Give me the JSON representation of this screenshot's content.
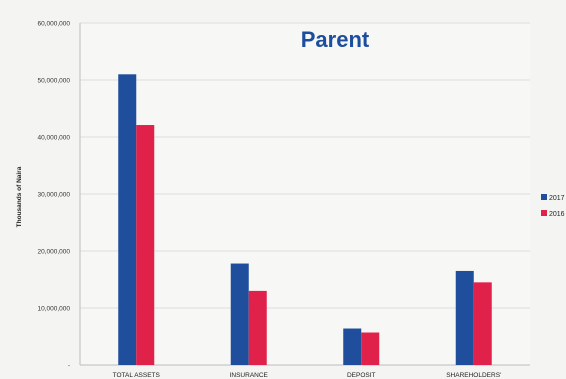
{
  "chart_data": {
    "type": "bar",
    "title": "Parent",
    "ylabel": "Thousands of Naira",
    "xlabel": "",
    "ylim": [
      0,
      60000000
    ],
    "y_ticks": [
      "60,000,000",
      "50,000,000",
      "40,000,000",
      "30,000,000",
      "20,000,000",
      "10,000,000",
      "-"
    ],
    "categories": [
      "TOTAL ASSETS",
      "INSURANCE",
      "DEPOSIT",
      "SHAREHOLDERS'"
    ],
    "series": [
      {
        "name": "2017",
        "color": "#1f4e9c",
        "values": [
          51000000,
          17800000,
          6400000,
          16500000
        ]
      },
      {
        "name": "2016",
        "color": "#e0224a",
        "values": [
          42100000,
          13000000,
          5700000,
          14500000
        ]
      }
    ],
    "grid": true,
    "legend_position": "right"
  }
}
